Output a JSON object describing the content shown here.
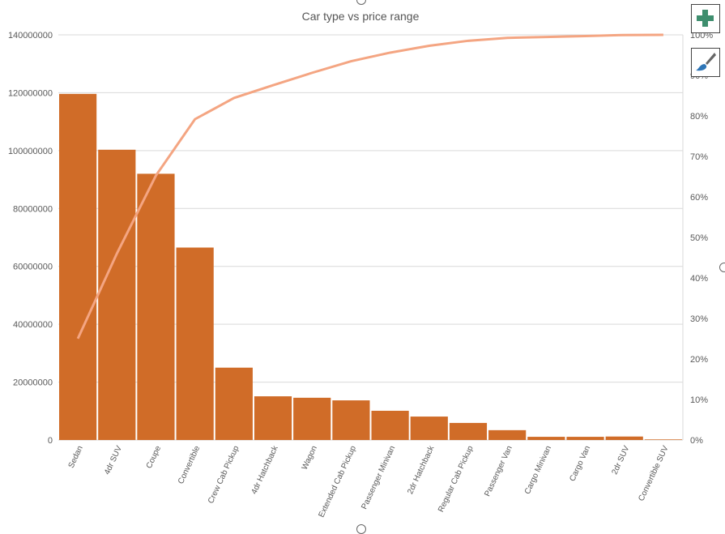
{
  "chart_data": {
    "type": "pareto",
    "title": "Car type vs price range",
    "categories": [
      "Sedan",
      "4dr SUV",
      "Coupe",
      "Convertible",
      "Crew Cab Pickup",
      "4dr Hatchback",
      "Wagon",
      "Extended Cab Pickup",
      "Passenger Minivan",
      "2dr Hatchback",
      "Regular Cab Pickup",
      "Passenger Van",
      "Cargo Minivan",
      "Cargo Van",
      "2dr SUV",
      "Convertible SUV"
    ],
    "values": [
      119600000,
      100300000,
      92000000,
      66500000,
      25000000,
      15100000,
      14600000,
      13700000,
      10100000,
      8100000,
      5900000,
      3400000,
      1100000,
      1100000,
      1200000,
      200000
    ],
    "ylim": [
      0,
      140000000
    ],
    "yticks": [
      "0",
      "20000000",
      "40000000",
      "60000000",
      "80000000",
      "100000000",
      "120000000",
      "140000000"
    ],
    "y2lim": [
      0,
      100
    ],
    "y2ticks": [
      "0%",
      "10%",
      "20%",
      "30%",
      "40%",
      "50%",
      "60%",
      "70%",
      "80%",
      "90%",
      "100%"
    ],
    "grid": true,
    "bar_color": "#D06C28",
    "line_color": "#F4A582"
  },
  "toolbar": {
    "add_icon": "plus-icon",
    "style_icon": "paintbrush-icon"
  }
}
